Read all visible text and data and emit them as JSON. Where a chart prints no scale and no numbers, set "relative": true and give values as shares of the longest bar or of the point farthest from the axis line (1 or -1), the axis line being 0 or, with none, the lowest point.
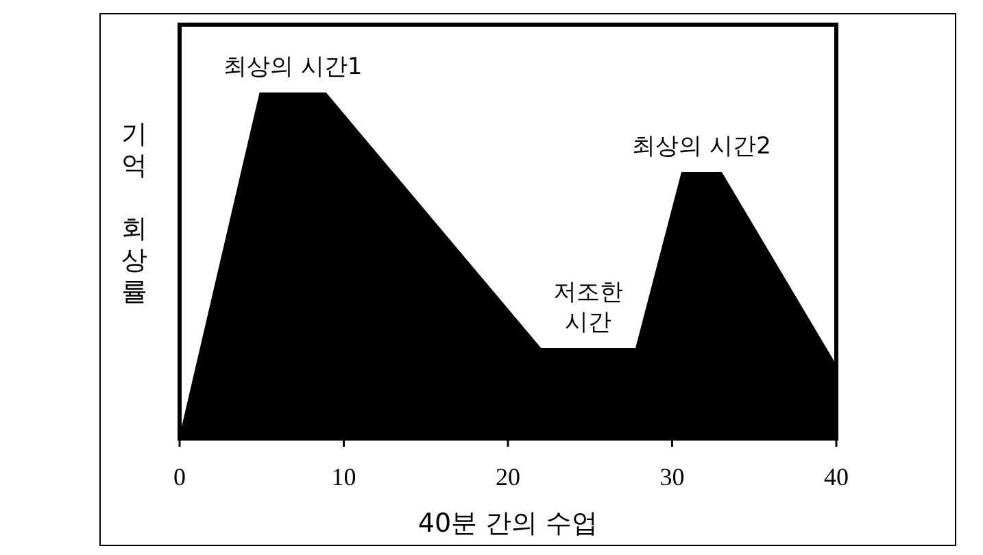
{
  "chart_data": {
    "type": "area",
    "xlabel": "40분 간의 수업",
    "ylabel": "기억 회상률",
    "relative": true,
    "x": [
      0,
      4.9,
      8.9,
      22,
      27.8,
      30.6,
      33,
      40
    ],
    "series": [
      {
        "color": "#000000",
        "values": [
          0,
          1,
          1,
          0.26,
          0.26,
          0.77,
          0.77,
          0.21
        ]
      }
    ],
    "xlim": [
      0,
      40
    ],
    "xticks": [
      0,
      10,
      20,
      30,
      40
    ],
    "grid": false,
    "annotations": [
      {
        "text": "최상의 시간1",
        "x": 6.9,
        "y": 1
      },
      {
        "text": "저조한\n시간",
        "x": 24.9,
        "y": 0.26
      },
      {
        "text": "최상의 시간2",
        "x": 31.8,
        "y": 0.77
      }
    ]
  }
}
